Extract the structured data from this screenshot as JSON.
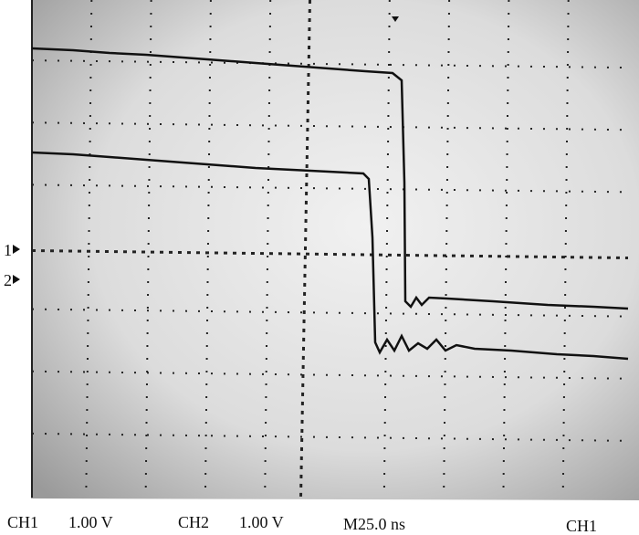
{
  "status_bar": {
    "ch1_label": "CH1",
    "ch1_scale": "1.00 V",
    "ch2_label": "CH2",
    "ch2_scale": "1.00 V",
    "timebase": "M25.0 ns",
    "trigger_source": "CH1"
  },
  "markers": [
    "1",
    "2"
  ]
}
